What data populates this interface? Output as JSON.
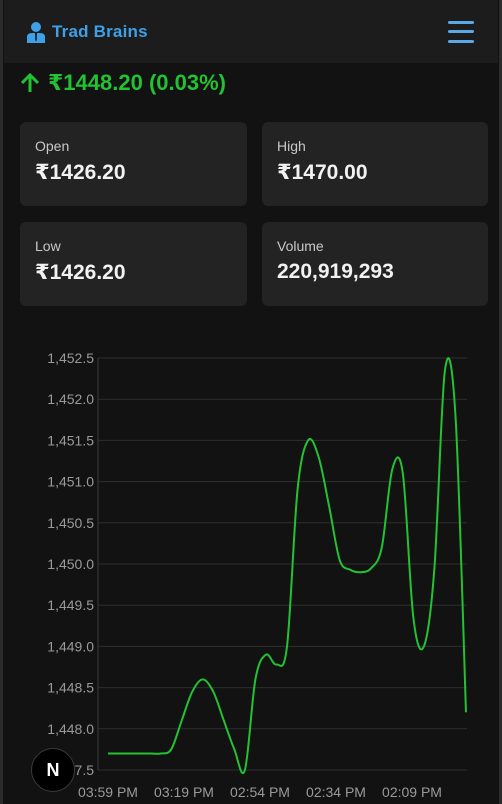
{
  "header": {
    "brand": "Trad Brains",
    "icon": "user-icon",
    "menu_icon": "hamburger-menu-icon"
  },
  "price": {
    "display": "₹1448.20 (0.03%)",
    "direction": "up",
    "color": "#22c232"
  },
  "stats": {
    "open": {
      "label": "Open",
      "value": "₹1426.20"
    },
    "high": {
      "label": "High",
      "value": "₹1470.00"
    },
    "low": {
      "label": "Low",
      "value": "₹1426.20"
    },
    "volume": {
      "label": "Volume",
      "value": "220,919,293"
    }
  },
  "chart_data": {
    "type": "line",
    "ylim": [
      1447.5,
      1452.5
    ],
    "y_ticks": [
      "1,447.5",
      "1,448.0",
      "1,448.5",
      "1,449.0",
      "1,449.5",
      "1,450.0",
      "1,450.5",
      "1,451.0",
      "1,451.5",
      "1,452.0",
      "1,452.5"
    ],
    "x_tick_labels": [
      "03:59 PM",
      "03:19 PM",
      "02:54 PM",
      "02:34 PM",
      "02:09 PM"
    ],
    "series": [
      {
        "color": "#22c232",
        "x": [
          0,
          1,
          2,
          3,
          4,
          5,
          6,
          7,
          8,
          9,
          10,
          11,
          12,
          13,
          14,
          15,
          16,
          17,
          18,
          19,
          20,
          21,
          22,
          23,
          24,
          25,
          26,
          27,
          28,
          29,
          30,
          31,
          32,
          33,
          34
        ],
        "values": [
          1447.7,
          1447.7,
          1447.7,
          1447.7,
          1447.7,
          1447.7,
          1447.75,
          1448.1,
          1448.45,
          1448.6,
          1448.45,
          1448.1,
          1447.75,
          1447.5,
          1448.6,
          1448.9,
          1448.78,
          1449.0,
          1450.9,
          1451.5,
          1451.3,
          1450.7,
          1450.05,
          1449.93,
          1449.9,
          1449.95,
          1450.2,
          1451.15,
          1451.1,
          1449.35,
          1449.0,
          1449.95,
          1452.35,
          1451.8,
          1448.2
        ]
      }
    ],
    "grid": true
  },
  "badge": {
    "label": "N"
  }
}
